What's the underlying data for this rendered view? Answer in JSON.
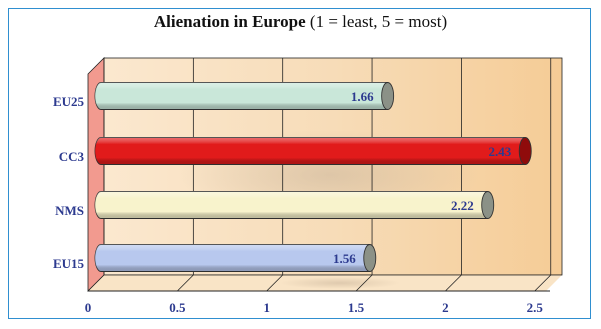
{
  "chart_data": {
    "type": "bar",
    "orientation": "horizontal",
    "title_bold": "Alienation in Europe",
    "title_rest": "(1 = least, 5 = most)",
    "categories": [
      "EU25",
      "CC3",
      "NMS",
      "EU15"
    ],
    "values": [
      1.66,
      2.43,
      2.22,
      1.56
    ],
    "value_labels": [
      "1.66",
      "2.43",
      "2.22",
      "1.56"
    ],
    "xticks": [
      "0",
      "0.5",
      "1",
      "1.5",
      "2",
      "2.5"
    ],
    "xlim": [
      0,
      2.5
    ],
    "grid": true,
    "colors": {
      "EU25": "#c9e7d9",
      "CC3": "#e11b1b",
      "NMS": "#f8f3cc",
      "EU15": "#b8c8ee",
      "label": "#2c3a8f",
      "back_wall": "#f8ddb8",
      "side_wall": "#f29a8f",
      "frame": "#2f8fd0"
    }
  }
}
